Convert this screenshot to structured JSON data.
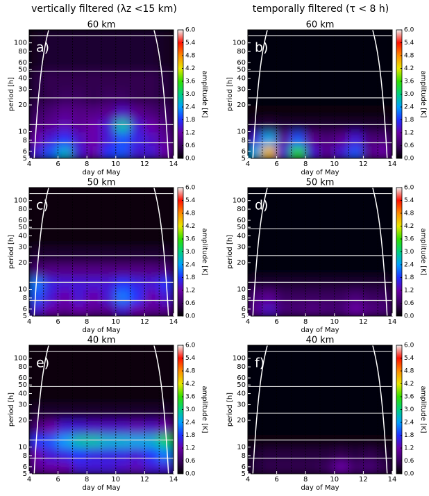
{
  "column_titles": [
    "vertically filtered (λz <15 km)",
    "temporally filtered (τ < 8 h)"
  ],
  "axes": {
    "xlabel": "day of May",
    "ylabel": "period [h]",
    "xlim": [
      4,
      14
    ],
    "ylim": [
      5,
      140
    ],
    "log_y": true,
    "xticks": [
      4,
      6,
      8,
      10,
      12,
      14
    ],
    "yticks": [
      5,
      6,
      8,
      10,
      20,
      30,
      40,
      50,
      60,
      80,
      100
    ],
    "x_edges": [
      4,
      5,
      6,
      7,
      8,
      9,
      10,
      11,
      12,
      13,
      14
    ],
    "y_edges": [
      5,
      7,
      10,
      14,
      20,
      30,
      50,
      140
    ],
    "reference_periods": [
      7.5,
      12,
      24,
      48,
      120
    ],
    "grid": true,
    "colorbar": {
      "label": "amplitude [K]",
      "lim": [
        0,
        6
      ],
      "ticks": [
        {
          "value": 0,
          "label": "0.0"
        },
        {
          "value": 0.6,
          "label": "0.6"
        },
        {
          "value": 1.2,
          "label": "1.2"
        },
        {
          "value": 1.8,
          "label": "1.8"
        },
        {
          "value": 2.4,
          "label": "2.4"
        },
        {
          "value": 3,
          "label": "3.0"
        },
        {
          "value": 3.6,
          "label": "3.6"
        },
        {
          "value": 4.2,
          "label": "4.2"
        },
        {
          "value": 4.8,
          "label": "4.8"
        },
        {
          "value": 5.4,
          "label": "5.4"
        },
        {
          "value": 6,
          "label": "6.0"
        }
      ],
      "colormap": [
        "#000000",
        "#3a0060",
        "#6a00a8",
        "#2030ff",
        "#00a0ff",
        "#00d080",
        "#30e000",
        "#e8e800",
        "#ff8c00",
        "#ff1000",
        "#f0f0f0"
      ]
    }
  },
  "chart_data": [
    {
      "type": "heatmap",
      "title": "60 km",
      "panel_label": "a)",
      "values": [
        [
          1.5,
          2.0,
          2.6,
          1.5,
          1.2,
          1.8,
          2.0,
          1.5,
          1.5,
          1.2
        ],
        [
          1.2,
          1.5,
          1.8,
          1.4,
          1.2,
          1.5,
          2.0,
          1.6,
          1.4,
          1.0
        ],
        [
          0.8,
          1.0,
          1.3,
          1.0,
          1.2,
          1.5,
          2.8,
          1.5,
          1.2,
          0.8
        ],
        [
          0.6,
          0.8,
          1.0,
          0.9,
          0.9,
          1.0,
          1.4,
          1.0,
          0.8,
          0.6
        ],
        [
          0.4,
          0.5,
          0.6,
          0.6,
          0.5,
          0.6,
          0.6,
          0.5,
          0.5,
          0.4
        ],
        [
          0.4,
          0.5,
          0.5,
          0.5,
          0.5,
          0.5,
          0.5,
          0.5,
          0.5,
          0.4
        ],
        [
          0.2,
          0.3,
          0.3,
          0.3,
          0.3,
          0.3,
          0.3,
          0.3,
          0.3,
          0.2
        ]
      ]
    },
    {
      "type": "heatmap",
      "title": "60 km",
      "panel_label": "b)",
      "values": [
        [
          2.5,
          4.5,
          1.5,
          3.5,
          1.5,
          1.0,
          1.5,
          2.0,
          1.0,
          1.2
        ],
        [
          1.5,
          2.5,
          1.0,
          2.0,
          1.0,
          0.8,
          1.0,
          1.5,
          0.8,
          0.8
        ],
        [
          0.3,
          0.4,
          0.3,
          0.3,
          0.3,
          0.3,
          0.3,
          0.3,
          0.3,
          0.3
        ],
        [
          0.1,
          0.1,
          0.1,
          0.1,
          0.1,
          0.1,
          0.1,
          0.1,
          0.1,
          0.1
        ],
        [
          0.05,
          0.05,
          0.05,
          0.05,
          0.05,
          0.05,
          0.05,
          0.05,
          0.05,
          0.05
        ],
        [
          0.05,
          0.05,
          0.05,
          0.05,
          0.05,
          0.05,
          0.05,
          0.05,
          0.05,
          0.05
        ],
        [
          0.05,
          0.05,
          0.05,
          0.05,
          0.05,
          0.05,
          0.05,
          0.05,
          0.05,
          0.05
        ]
      ]
    },
    {
      "type": "heatmap",
      "title": "50 km",
      "panel_label": "c)",
      "values": [
        [
          1.5,
          1.2,
          1.0,
          1.2,
          1.0,
          1.0,
          1.5,
          1.2,
          1.0,
          1.0
        ],
        [
          2.0,
          1.5,
          1.2,
          1.5,
          1.2,
          1.5,
          2.2,
          1.8,
          1.2,
          1.5
        ],
        [
          2.2,
          1.6,
          1.5,
          1.5,
          1.5,
          1.5,
          1.8,
          1.6,
          1.5,
          1.8
        ],
        [
          0.8,
          0.9,
          0.9,
          0.9,
          0.9,
          0.9,
          0.9,
          0.9,
          0.9,
          0.8
        ],
        [
          0.3,
          0.3,
          0.3,
          0.3,
          0.3,
          0.3,
          0.3,
          0.3,
          0.3,
          0.3
        ],
        [
          0.1,
          0.1,
          0.1,
          0.1,
          0.1,
          0.1,
          0.1,
          0.1,
          0.1,
          0.1
        ],
        [
          0.1,
          0.1,
          0.1,
          0.1,
          0.1,
          0.1,
          0.1,
          0.1,
          0.1,
          0.1
        ]
      ]
    },
    {
      "type": "heatmap",
      "title": "50 km",
      "panel_label": "d)",
      "values": [
        [
          1.0,
          1.4,
          0.8,
          0.8,
          0.9,
          0.8,
          0.8,
          1.2,
          0.9,
          0.8
        ],
        [
          0.8,
          1.0,
          0.6,
          0.6,
          0.6,
          0.6,
          0.6,
          0.8,
          0.6,
          0.6
        ],
        [
          0.3,
          0.3,
          0.3,
          0.3,
          0.3,
          0.3,
          0.3,
          0.3,
          0.3,
          0.3
        ],
        [
          0.05,
          0.05,
          0.05,
          0.05,
          0.05,
          0.05,
          0.05,
          0.05,
          0.05,
          0.05
        ],
        [
          0.05,
          0.05,
          0.05,
          0.05,
          0.05,
          0.05,
          0.05,
          0.05,
          0.05,
          0.05
        ],
        [
          0.05,
          0.05,
          0.05,
          0.05,
          0.05,
          0.05,
          0.05,
          0.05,
          0.05,
          0.05
        ],
        [
          0.05,
          0.05,
          0.05,
          0.05,
          0.05,
          0.05,
          0.05,
          0.05,
          0.05,
          0.05
        ]
      ]
    },
    {
      "type": "heatmap",
      "title": "40 km",
      "panel_label": "e)",
      "values": [
        [
          1.0,
          1.2,
          1.2,
          1.5,
          1.5,
          1.5,
          1.4,
          1.3,
          1.5,
          1.5
        ],
        [
          1.2,
          1.5,
          1.6,
          1.8,
          1.6,
          1.6,
          1.6,
          1.5,
          1.8,
          2.2
        ],
        [
          1.8,
          2.0,
          2.4,
          2.8,
          2.8,
          2.6,
          2.6,
          2.5,
          2.6,
          3.2
        ],
        [
          0.8,
          1.2,
          1.5,
          1.5,
          1.4,
          1.4,
          1.4,
          1.3,
          1.4,
          1.2
        ],
        [
          0.3,
          0.3,
          0.3,
          0.3,
          0.3,
          0.3,
          0.3,
          0.3,
          0.3,
          0.3
        ],
        [
          0.1,
          0.1,
          0.1,
          0.1,
          0.1,
          0.1,
          0.1,
          0.1,
          0.1,
          0.1
        ],
        [
          0.1,
          0.1,
          0.1,
          0.1,
          0.1,
          0.1,
          0.1,
          0.1,
          0.1,
          0.1
        ]
      ]
    },
    {
      "type": "heatmap",
      "title": "40 km",
      "panel_label": "f)",
      "values": [
        [
          0.4,
          0.5,
          0.5,
          0.5,
          0.5,
          0.6,
          1.2,
          0.7,
          0.8,
          0.5
        ],
        [
          0.3,
          0.4,
          0.4,
          0.4,
          0.4,
          0.4,
          0.5,
          0.4,
          0.5,
          0.3
        ],
        [
          0.1,
          0.1,
          0.1,
          0.1,
          0.1,
          0.1,
          0.1,
          0.1,
          0.1,
          0.1
        ],
        [
          0.05,
          0.05,
          0.05,
          0.05,
          0.05,
          0.05,
          0.05,
          0.05,
          0.05,
          0.05
        ],
        [
          0.05,
          0.05,
          0.05,
          0.05,
          0.05,
          0.05,
          0.05,
          0.05,
          0.05,
          0.05
        ],
        [
          0.05,
          0.05,
          0.05,
          0.05,
          0.05,
          0.05,
          0.05,
          0.05,
          0.05,
          0.05
        ],
        [
          0.05,
          0.05,
          0.05,
          0.05,
          0.05,
          0.05,
          0.05,
          0.05,
          0.05,
          0.05
        ]
      ]
    }
  ]
}
